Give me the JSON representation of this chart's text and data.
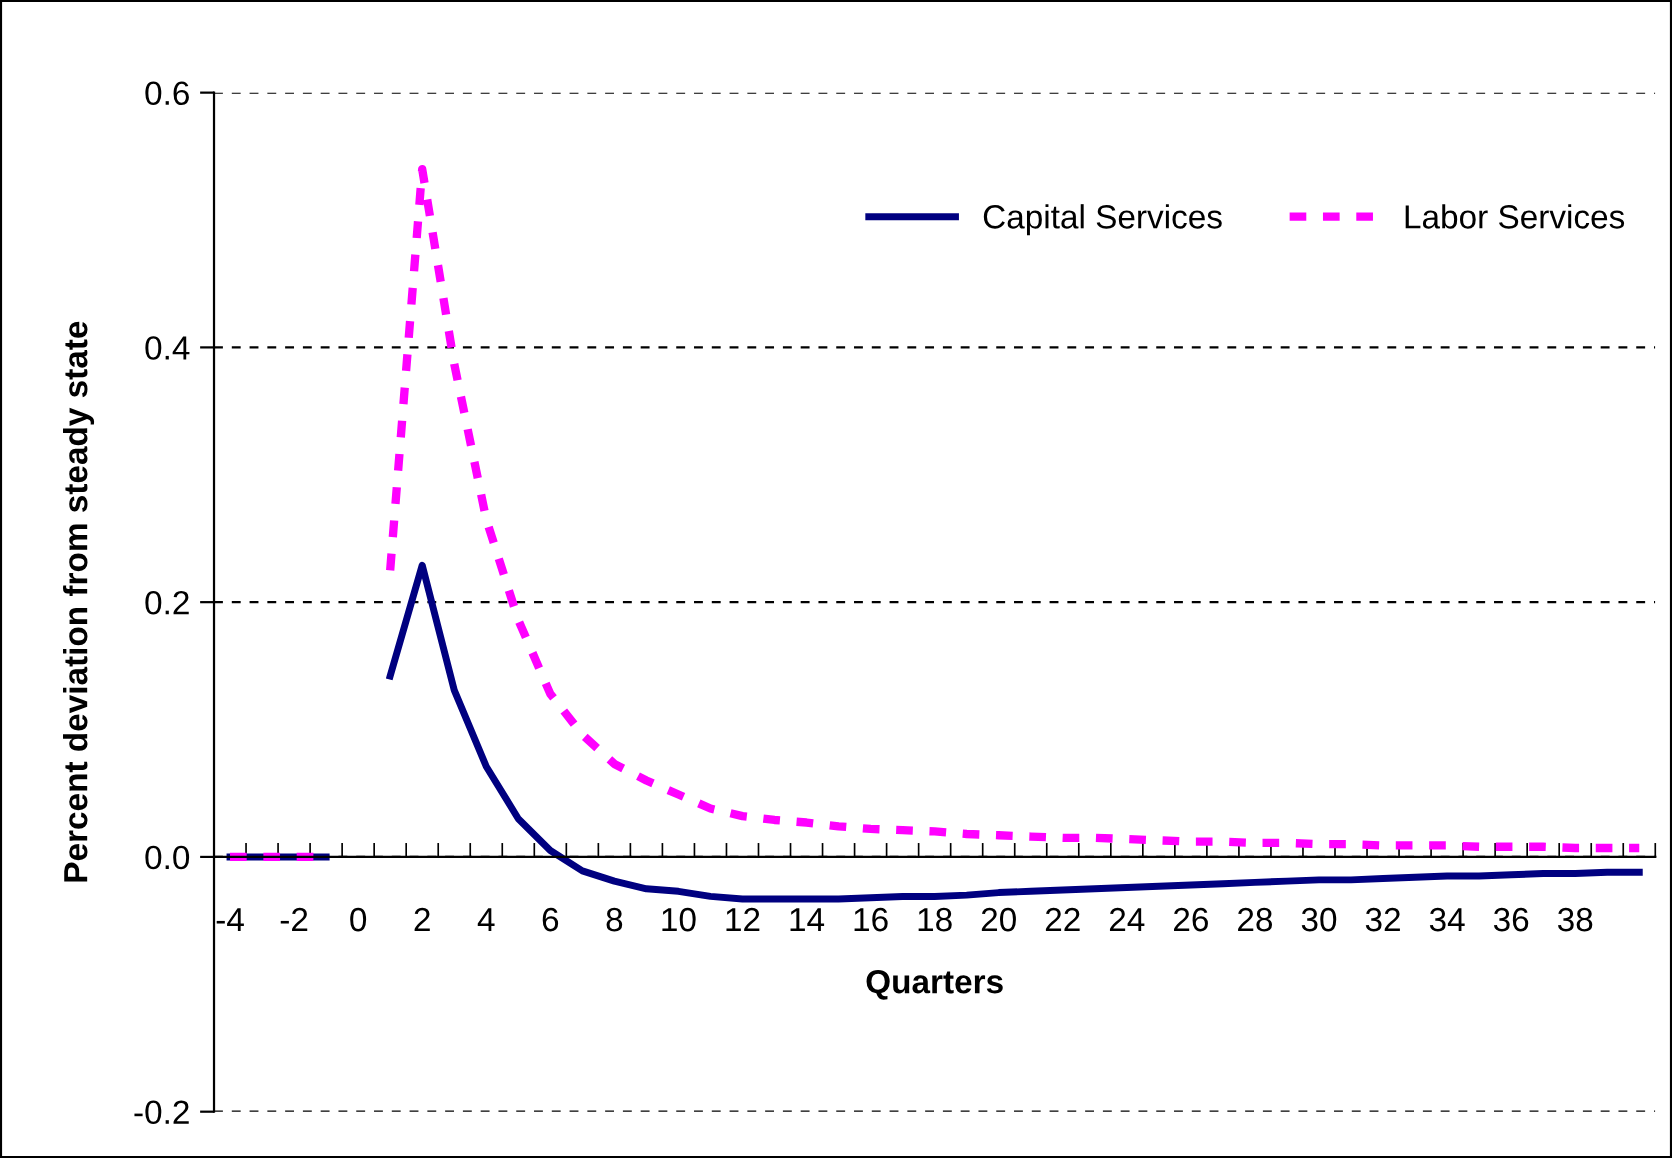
{
  "chart_data": {
    "type": "line",
    "xlabel": "Quarters",
    "ylabel": "Percent deviation from steady state",
    "categories": [
      "-4",
      null,
      "-2",
      null,
      "0",
      null,
      "2",
      null,
      "4",
      null,
      "6",
      null,
      "8",
      null,
      "10",
      null,
      "12",
      null,
      "14",
      null,
      "16",
      null,
      "18",
      null,
      "20",
      null,
      "22",
      null,
      "24",
      null,
      "26",
      null,
      "28",
      null,
      "30",
      null,
      "32",
      null,
      "34",
      null,
      "36",
      null,
      "38",
      null,
      null
    ],
    "series": [
      {
        "name": "Capital Services",
        "color": "#000080",
        "line_style": "solid",
        "values": [
          0,
          0,
          0,
          0,
          null,
          0.142,
          0.229,
          0.131,
          0.071,
          0.03,
          0.005,
          -0.011,
          -0.019,
          -0.025,
          -0.027,
          -0.031,
          -0.033,
          -0.033,
          -0.033,
          -0.033,
          -0.032,
          -0.031,
          -0.031,
          -0.03,
          -0.028,
          -0.027,
          -0.026,
          -0.025,
          -0.024,
          -0.023,
          -0.022,
          -0.021,
          -0.02,
          -0.019,
          -0.018,
          -0.018,
          -0.017,
          -0.016,
          -0.015,
          -0.015,
          -0.014,
          -0.013,
          -0.013,
          -0.012,
          -0.012
        ]
      },
      {
        "name": "Labor Services",
        "color": "#ff00ff",
        "line_style": "dashed",
        "values": [
          0,
          0,
          0,
          0,
          null,
          0.225,
          0.54,
          0.387,
          0.265,
          0.186,
          0.128,
          0.096,
          0.073,
          0.06,
          0.049,
          0.038,
          0.032,
          0.029,
          0.027,
          0.024,
          0.022,
          0.021,
          0.02,
          0.018,
          0.017,
          0.016,
          0.015,
          0.015,
          0.014,
          0.013,
          0.012,
          0.012,
          0.011,
          0.011,
          0.01,
          0.01,
          0.009,
          0.009,
          0.009,
          0.008,
          0.008,
          0.008,
          0.007,
          0.007,
          0.007
        ]
      }
    ],
    "ylim": [
      -0.2,
      0.6
    ],
    "yticks": [
      {
        "value": -0.2,
        "label": "-0.2"
      },
      {
        "value": 0,
        "label": "0.0"
      },
      {
        "value": 0.2,
        "label": "0.2"
      },
      {
        "value": 0.4,
        "label": "0.4"
      },
      {
        "value": 0.6,
        "label": "0.6"
      }
    ],
    "grid": "y",
    "legend": "top right",
    "marker": "none"
  }
}
